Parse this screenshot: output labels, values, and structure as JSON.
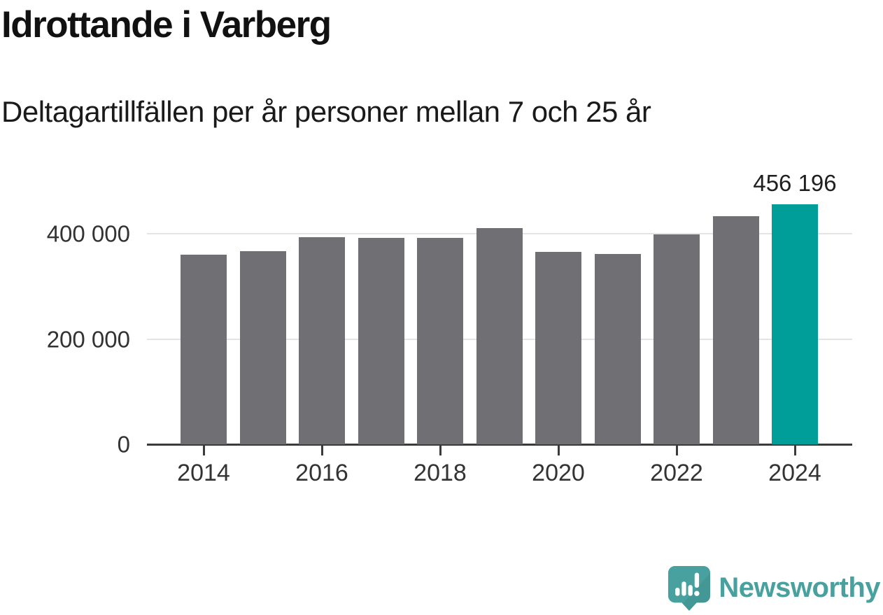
{
  "chart_data": {
    "type": "bar",
    "title": "Idrottande i Varberg",
    "subtitle": "Deltagartillfällen per år personer mellan 7 och 25 år",
    "categories": [
      "2014",
      "2015",
      "2016",
      "2017",
      "2018",
      "2019",
      "2020",
      "2021",
      "2022",
      "2023",
      "2024"
    ],
    "values": [
      360000,
      367000,
      394000,
      392000,
      392000,
      411000,
      366000,
      362000,
      399000,
      434000,
      456196
    ],
    "highlight_index": 10,
    "highlight_label": "456 196",
    "yticks": [
      {
        "value": 0,
        "label": "0"
      },
      {
        "value": 200000,
        "label": "200 000"
      },
      {
        "value": 400000,
        "label": "400 000"
      }
    ],
    "xtick_years": [
      "2014",
      "2016",
      "2018",
      "2020",
      "2022",
      "2024"
    ],
    "ylim": [
      0,
      472000
    ],
    "xlabel": "",
    "ylabel": "",
    "grid": "horizontal",
    "legend": "none"
  },
  "branding": {
    "label": "Newsworthy",
    "icon": "newsworthy-bubble-barchart-icon"
  },
  "colors": {
    "bar": "#706f74",
    "highlight": "#009e99",
    "grid": "#e4e4e4",
    "axis": "#3b3b3b",
    "title": "#111111",
    "text": "#1a1a1a",
    "tick_label": "#333333",
    "brand": "#48a19e",
    "brand_dark": "#3f918e"
  }
}
